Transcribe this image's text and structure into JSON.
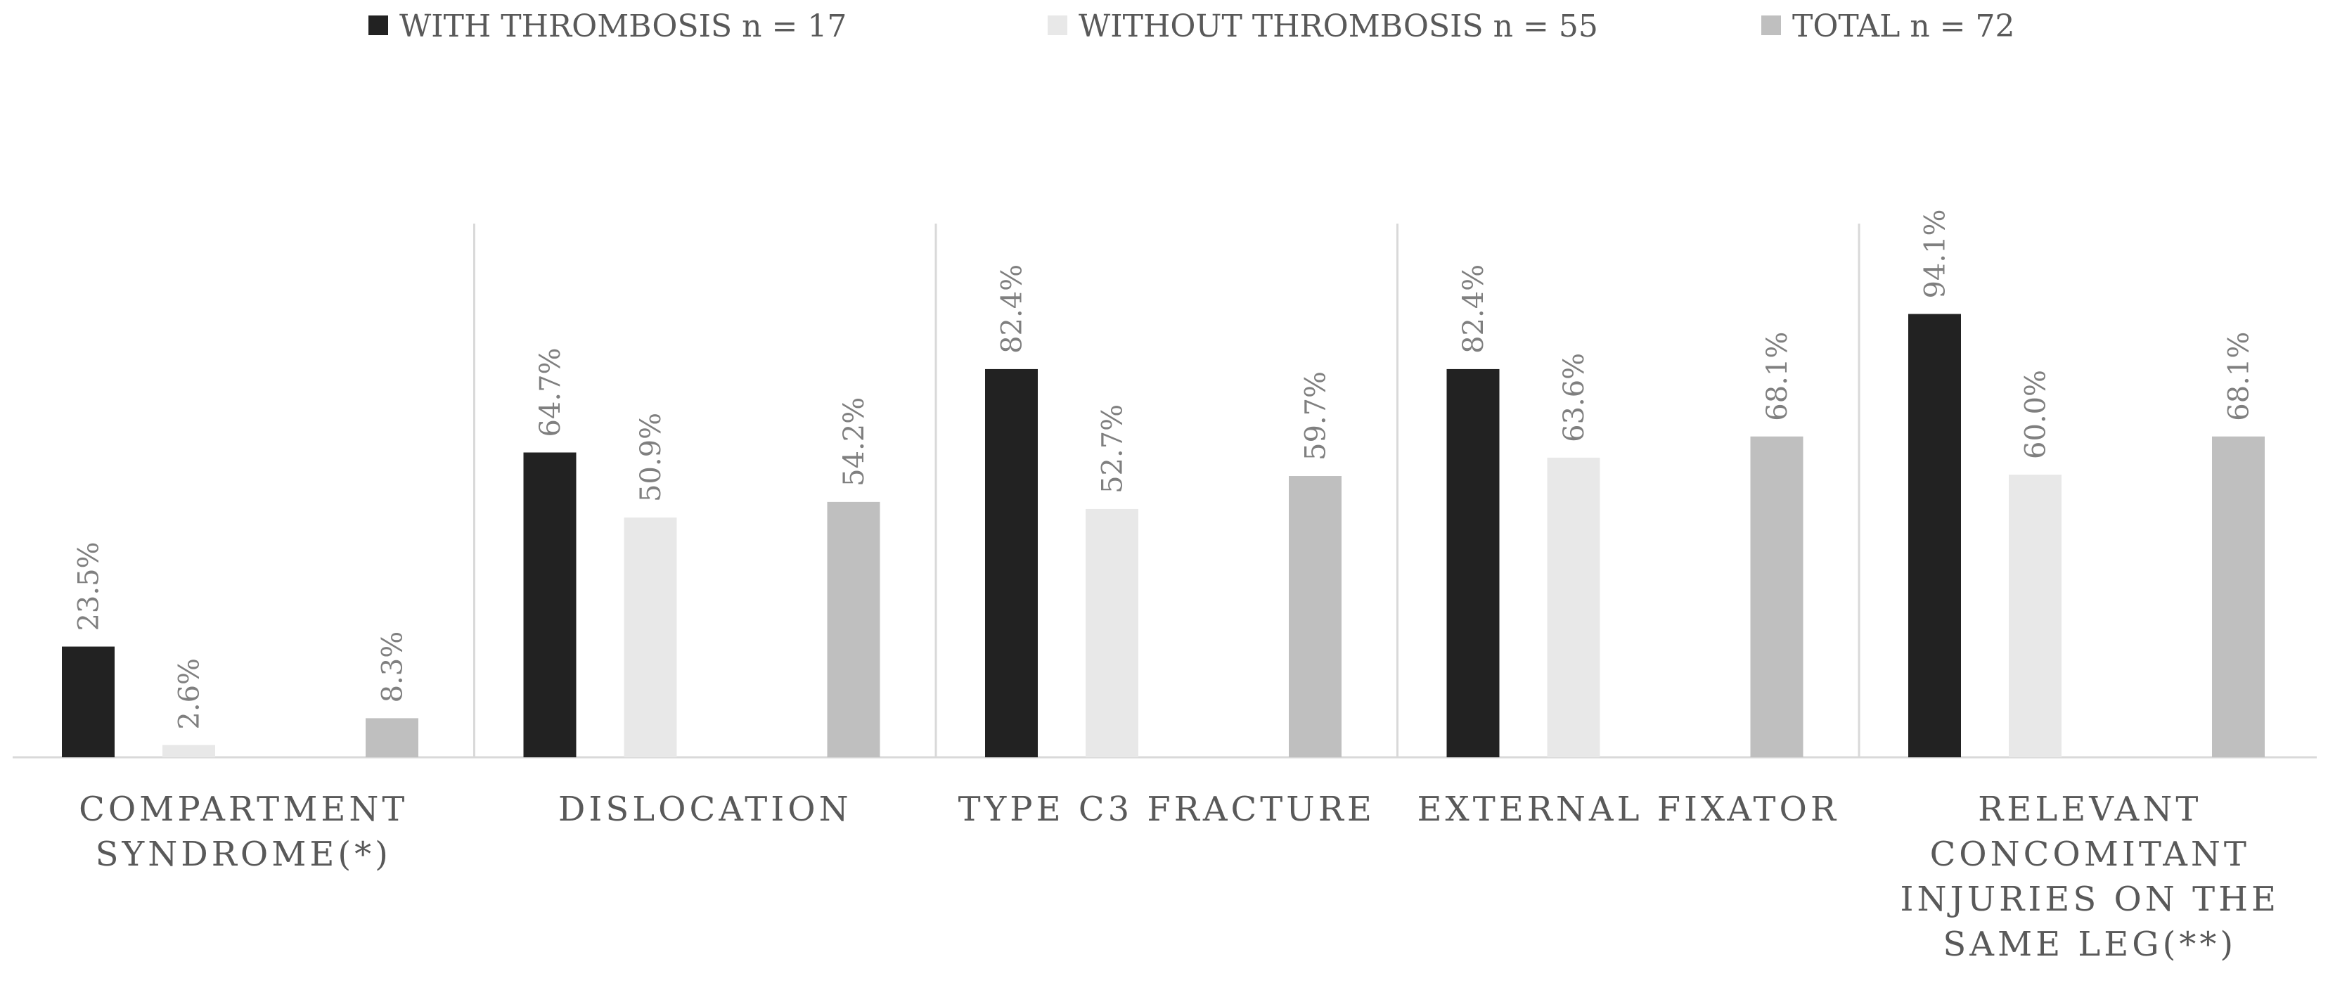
{
  "chart_data": {
    "type": "bar",
    "title": "",
    "xlabel": "",
    "ylabel": "",
    "ylim": [
      0,
      100
    ],
    "grid": false,
    "legend_position": "top-center",
    "categories": [
      [
        "COMPARTMENT",
        "SYNDROME(*)"
      ],
      [
        "DISLOCATION"
      ],
      [
        "TYPE C3 FRACTURE"
      ],
      [
        "EXTERNAL FIXATOR"
      ],
      [
        "RELEVANT",
        "CONCOMITANT",
        "INJURIES ON THE",
        "SAME LEG(**)"
      ]
    ],
    "series": [
      {
        "name": "WITH THROMBOSIS  n = 17",
        "color": "#222222",
        "values": [
          23.5,
          64.7,
          82.4,
          82.4,
          94.1
        ],
        "labels": [
          "23.5%",
          "64.7%",
          "82.4%",
          "82.4%",
          "94.1%"
        ]
      },
      {
        "name": "WITHOUT THROMBOSIS  n = 55",
        "color": "#e8e8e8",
        "values": [
          2.6,
          50.9,
          52.7,
          63.6,
          60.0
        ],
        "labels": [
          "2.6%",
          "50.9%",
          "52.7%",
          "63.6%",
          "60.0%"
        ]
      },
      {
        "name": "TOTAL n = 72",
        "color": "#bfbfbf",
        "values": [
          8.3,
          54.2,
          59.7,
          68.1,
          68.1
        ],
        "labels": [
          "8.3%",
          "54.2%",
          "59.7%",
          "68.1%",
          "68.1%"
        ]
      }
    ]
  }
}
